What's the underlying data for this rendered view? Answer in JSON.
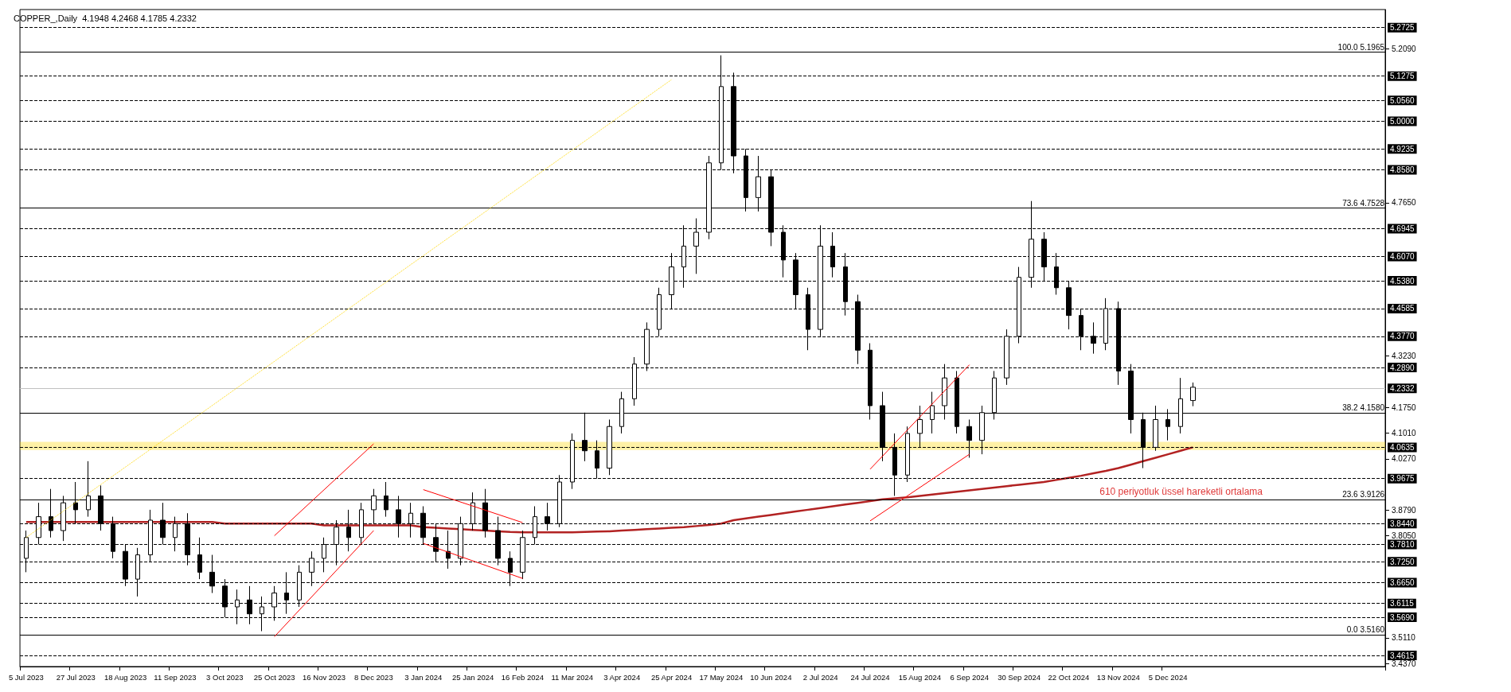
{
  "chart_data": {
    "type": "candlestick",
    "title": "COPPER_,Daily  4.1948 4.2468 4.1785 4.2332",
    "categories": [
      "5 Jul 2023",
      null,
      null,
      null,
      "27 Jul 2023",
      null,
      null,
      null,
      "18 Aug 2023",
      null,
      null,
      null,
      "11 Sep 2023",
      null,
      null,
      null,
      "3 Oct 2023",
      null,
      null,
      null,
      "25 Oct 2023",
      null,
      null,
      null,
      "16 Nov 2023",
      null,
      null,
      null,
      "8 Dec 2023",
      null,
      null,
      null,
      "3 Jan 2024",
      null,
      null,
      null,
      "25 Jan 2024",
      null,
      null,
      null,
      "16 Feb 2024",
      null,
      null,
      null,
      "11 Mar 2024",
      null,
      null,
      null,
      "3 Apr 2024",
      null,
      null,
      null,
      "25 Apr 2024",
      null,
      null,
      null,
      "17 May 2024",
      null,
      null,
      null,
      "10 Jun 2024",
      null,
      null,
      null,
      "2 Jul 2024",
      null,
      null,
      null,
      "24 Jul 2024",
      null,
      null,
      null,
      "15 Aug 2024",
      null,
      null,
      null,
      "6 Sep 2024",
      null,
      null,
      null,
      "30 Sep 2024",
      null,
      null,
      null,
      "22 Oct 2024",
      null,
      null,
      null,
      "13 Nov 2024",
      null,
      null,
      null,
      "5 Dec 2024",
      null,
      null,
      null,
      null,
      null,
      null,
      null,
      null,
      null,
      null,
      null,
      null,
      null,
      null,
      null,
      null,
      null
    ],
    "ohlc": [
      [
        3.74,
        3.82,
        3.7,
        3.8
      ],
      [
        3.8,
        3.9,
        3.78,
        3.86
      ],
      [
        3.86,
        3.94,
        3.8,
        3.82
      ],
      [
        3.82,
        3.92,
        3.79,
        3.9
      ],
      [
        3.9,
        3.96,
        3.84,
        3.88
      ],
      [
        3.88,
        4.02,
        3.86,
        3.92
      ],
      [
        3.92,
        3.95,
        3.82,
        3.84
      ],
      [
        3.84,
        3.86,
        3.74,
        3.76
      ],
      [
        3.76,
        3.78,
        3.66,
        3.68
      ],
      [
        3.68,
        3.77,
        3.63,
        3.75
      ],
      [
        3.75,
        3.88,
        3.73,
        3.85
      ],
      [
        3.85,
        3.9,
        3.78,
        3.8
      ],
      [
        3.8,
        3.86,
        3.76,
        3.84
      ],
      [
        3.84,
        3.87,
        3.72,
        3.75
      ],
      [
        3.75,
        3.8,
        3.68,
        3.7
      ],
      [
        3.7,
        3.75,
        3.64,
        3.66
      ],
      [
        3.66,
        3.68,
        3.57,
        3.6
      ],
      [
        3.6,
        3.65,
        3.55,
        3.62
      ],
      [
        3.62,
        3.66,
        3.55,
        3.58
      ],
      [
        3.58,
        3.63,
        3.53,
        3.6
      ],
      [
        3.6,
        3.66,
        3.56,
        3.64
      ],
      [
        3.64,
        3.7,
        3.58,
        3.62
      ],
      [
        3.62,
        3.72,
        3.6,
        3.7
      ],
      [
        3.7,
        3.76,
        3.66,
        3.74
      ],
      [
        3.74,
        3.8,
        3.7,
        3.78
      ],
      [
        3.78,
        3.85,
        3.72,
        3.83
      ],
      [
        3.83,
        3.88,
        3.76,
        3.8
      ],
      [
        3.8,
        3.9,
        3.78,
        3.88
      ],
      [
        3.88,
        3.94,
        3.84,
        3.92
      ],
      [
        3.92,
        3.96,
        3.86,
        3.88
      ],
      [
        3.88,
        3.92,
        3.8,
        3.84
      ],
      [
        3.84,
        3.9,
        3.8,
        3.87
      ],
      [
        3.87,
        3.89,
        3.78,
        3.8
      ],
      [
        3.8,
        3.84,
        3.73,
        3.76
      ],
      [
        3.76,
        3.82,
        3.71,
        3.74
      ],
      [
        3.74,
        3.86,
        3.72,
        3.84
      ],
      [
        3.84,
        3.93,
        3.82,
        3.9
      ],
      [
        3.9,
        3.94,
        3.8,
        3.82
      ],
      [
        3.82,
        3.86,
        3.72,
        3.74
      ],
      [
        3.74,
        3.76,
        3.66,
        3.7
      ],
      [
        3.7,
        3.82,
        3.68,
        3.8
      ],
      [
        3.8,
        3.89,
        3.78,
        3.86
      ],
      [
        3.86,
        3.9,
        3.82,
        3.84
      ],
      [
        3.84,
        3.98,
        3.83,
        3.96
      ],
      [
        3.96,
        4.1,
        3.94,
        4.08
      ],
      [
        4.08,
        4.16,
        4.02,
        4.05
      ],
      [
        4.05,
        4.08,
        3.97,
        4.0
      ],
      [
        4.0,
        4.14,
        3.98,
        4.12
      ],
      [
        4.12,
        4.22,
        4.1,
        4.2
      ],
      [
        4.2,
        4.32,
        4.18,
        4.3
      ],
      [
        4.3,
        4.42,
        4.28,
        4.4
      ],
      [
        4.4,
        4.52,
        4.38,
        4.5
      ],
      [
        4.5,
        4.62,
        4.46,
        4.58
      ],
      [
        4.58,
        4.7,
        4.52,
        4.64
      ],
      [
        4.64,
        4.72,
        4.56,
        4.68
      ],
      [
        4.68,
        4.9,
        4.66,
        4.88
      ],
      [
        4.88,
        5.19,
        4.86,
        5.1
      ],
      [
        5.1,
        5.14,
        4.85,
        4.9
      ],
      [
        4.9,
        4.92,
        4.74,
        4.78
      ],
      [
        4.78,
        4.9,
        4.74,
        4.84
      ],
      [
        4.84,
        4.86,
        4.64,
        4.68
      ],
      [
        4.68,
        4.7,
        4.55,
        4.6
      ],
      [
        4.6,
        4.62,
        4.46,
        4.5
      ],
      [
        4.5,
        4.52,
        4.34,
        4.4
      ],
      [
        4.4,
        4.7,
        4.38,
        4.64
      ],
      [
        4.64,
        4.68,
        4.55,
        4.58
      ],
      [
        4.58,
        4.62,
        4.44,
        4.48
      ],
      [
        4.48,
        4.5,
        4.3,
        4.34
      ],
      [
        4.34,
        4.36,
        4.14,
        4.18
      ],
      [
        4.18,
        4.22,
        4.02,
        4.06
      ],
      [
        4.06,
        4.1,
        3.92,
        3.98
      ],
      [
        3.98,
        4.12,
        3.96,
        4.1
      ],
      [
        4.1,
        4.18,
        4.06,
        4.14
      ],
      [
        4.14,
        4.22,
        4.1,
        4.18
      ],
      [
        4.18,
        4.3,
        4.14,
        4.26
      ],
      [
        4.26,
        4.28,
        4.1,
        4.12
      ],
      [
        4.12,
        4.14,
        4.03,
        4.08
      ],
      [
        4.08,
        4.18,
        4.04,
        4.16
      ],
      [
        4.16,
        4.28,
        4.14,
        4.26
      ],
      [
        4.26,
        4.4,
        4.24,
        4.38
      ],
      [
        4.38,
        4.58,
        4.36,
        4.55
      ],
      [
        4.55,
        4.77,
        4.52,
        4.66
      ],
      [
        4.66,
        4.68,
        4.54,
        4.58
      ],
      [
        4.58,
        4.62,
        4.5,
        4.52
      ],
      [
        4.52,
        4.54,
        4.4,
        4.44
      ],
      [
        4.44,
        4.46,
        4.34,
        4.38
      ],
      [
        4.38,
        4.42,
        4.33,
        4.36
      ],
      [
        4.36,
        4.49,
        4.34,
        4.46
      ],
      [
        4.46,
        4.48,
        4.24,
        4.28
      ],
      [
        4.28,
        4.3,
        4.1,
        4.14
      ],
      [
        4.14,
        4.16,
        4.0,
        4.06
      ],
      [
        4.06,
        4.18,
        4.05,
        4.14
      ],
      [
        4.14,
        4.17,
        4.08,
        4.12
      ],
      [
        4.12,
        4.26,
        4.1,
        4.2
      ],
      [
        4.1948,
        4.2468,
        4.1785,
        4.2332
      ],
      null,
      null,
      null,
      null,
      null,
      null,
      null,
      null,
      null,
      null,
      null,
      null,
      null,
      null,
      null
    ],
    "series": [
      {
        "type": "line",
        "color": "#b22222",
        "values": [
          3.845,
          3.845,
          3.845,
          3.845,
          3.845,
          3.845,
          3.845,
          3.845,
          3.845,
          3.845,
          3.845,
          3.845,
          3.845,
          3.845,
          3.845,
          3.845,
          3.84,
          3.84,
          3.84,
          3.84,
          3.84,
          3.84,
          3.84,
          3.84,
          3.835,
          3.835,
          3.835,
          3.835,
          3.835,
          3.835,
          3.835,
          3.835,
          3.83,
          3.828,
          3.826,
          3.824,
          3.822,
          3.82,
          3.818,
          3.816,
          3.815,
          3.815,
          3.815,
          3.815,
          3.815,
          3.816,
          3.817,
          3.818,
          3.82,
          3.822,
          3.824,
          3.826,
          3.828,
          3.83,
          3.833,
          3.836,
          3.84,
          3.85,
          3.855,
          3.86,
          3.865,
          3.87,
          3.875,
          3.88,
          3.885,
          3.89,
          3.895,
          3.9,
          3.905,
          3.91,
          3.913,
          3.916,
          3.92,
          3.924,
          3.928,
          3.932,
          3.936,
          3.94,
          3.944,
          3.948,
          3.952,
          3.956,
          3.96,
          3.966,
          3.972,
          3.978,
          3.985,
          3.992,
          4.0,
          4.01,
          4.02,
          4.03,
          4.04,
          4.05,
          4.06,
          null,
          null,
          null,
          null,
          null,
          null,
          null,
          null,
          null,
          null,
          null,
          null,
          null,
          null,
          null
        ]
      },
      {
        "type": "line",
        "color": "#ff0000",
        "x": [
          "25 Oct 2023",
          "8 Dec 2023"
        ],
        "values": [
          3.514,
          3.82
        ]
      },
      {
        "type": "line",
        "color": "#ff0000",
        "x": [
          "25 Oct 2023",
          "8 Dec 2023"
        ],
        "values": [
          3.805,
          4.07
        ]
      },
      {
        "type": "line",
        "color": "#ff0000",
        "x": [
          "3 Jan 2024",
          "16 Feb 2024"
        ],
        "values": [
          3.938,
          3.843
        ]
      },
      {
        "type": "line",
        "color": "#ff0000",
        "x": [
          "3 Jan 2024",
          "16 Feb 2024"
        ],
        "values": [
          3.783,
          3.682
        ]
      },
      {
        "type": "line",
        "color": "#ff0000",
        "x": [
          "24 Jul 2024",
          "6 Sep 2024"
        ],
        "values": [
          3.848,
          4.04
        ]
      },
      {
        "type": "line",
        "color": "#ff0000",
        "x": [
          "24 Jul 2024",
          "6 Sep 2024"
        ],
        "values": [
          3.997,
          4.298
        ]
      },
      {
        "type": "line",
        "color": "#ffd700",
        "line_style": "dotted",
        "x": [
          "5 Jul 2023",
          "25 Apr 2024"
        ],
        "values": [
          3.8,
          5.12
        ]
      }
    ],
    "ylim": [
      3.428,
      5.322
    ],
    "yticks": [
      {
        "value": 5.209,
        "label": "5.2090"
      },
      {
        "value": 4.765,
        "label": "4.7650"
      },
      {
        "value": 4.323,
        "label": "4.3230"
      },
      {
        "value": 4.175,
        "label": "4.1750"
      },
      {
        "value": 4.101,
        "label": "4.1010"
      },
      {
        "value": 4.027,
        "label": "4.0270"
      },
      {
        "value": 3.879,
        "label": "3.8790"
      },
      {
        "value": 3.805,
        "label": "3.8050"
      },
      {
        "value": 3.511,
        "label": "3.5110"
      },
      {
        "value": 3.437,
        "label": "3.4370"
      }
    ],
    "ref_lines": [
      {
        "axis": "y",
        "value": 5.2725,
        "label": "5.2725",
        "color": "#000000",
        "line_style": "dashed"
      },
      {
        "axis": "y",
        "value": 5.1965,
        "label": "100.0 5.1965",
        "color": "#000000",
        "line_style": "solid"
      },
      {
        "axis": "y",
        "value": 5.1275,
        "label": "5.1275",
        "color": "#000000",
        "line_style": "dashed"
      },
      {
        "axis": "y",
        "value": 5.056,
        "label": "5.0560",
        "color": "#000000",
        "line_style": "dashed"
      },
      {
        "axis": "y",
        "value": 5.0,
        "label": "5.0000",
        "color": "#000000",
        "line_style": "dashed"
      },
      {
        "axis": "y",
        "value": 4.9235,
        "label": "4.9235",
        "color": "#000000",
        "line_style": "dashed"
      },
      {
        "axis": "y",
        "value": 4.858,
        "label": "4.8580",
        "color": "#000000",
        "line_style": "dashed"
      },
      {
        "axis": "y",
        "value": 4.7528,
        "label": "73.6 4.7528",
        "color": "#000000",
        "line_style": "solid"
      },
      {
        "axis": "y",
        "value": 4.6945,
        "label": "4.6945",
        "color": "#000000",
        "line_style": "dashed"
      },
      {
        "axis": "y",
        "value": 4.607,
        "label": "4.6070",
        "color": "#000000",
        "line_style": "dashed"
      },
      {
        "axis": "y",
        "value": 4.538,
        "label": "4.5380",
        "color": "#000000",
        "line_style": "dashed"
      },
      {
        "axis": "y",
        "value": 4.4585,
        "label": "4.4585",
        "color": "#000000",
        "line_style": "dashed"
      },
      {
        "axis": "y",
        "value": 4.377,
        "label": "4.3770",
        "color": "#000000",
        "line_style": "dashed"
      },
      {
        "axis": "y",
        "value": 4.289,
        "label": "4.2890",
        "color": "#000000",
        "line_style": "dashed"
      },
      {
        "axis": "y",
        "value": 4.2332,
        "label": "4.2332",
        "color": "#c0c0c0",
        "line_style": "solid"
      },
      {
        "axis": "y",
        "value": 4.158,
        "label": "38.2 4.1580",
        "color": "#000000",
        "line_style": "solid"
      },
      {
        "axis": "y",
        "value": 4.0635,
        "label": "4.0635",
        "color": "#000000",
        "line_style": "dashed"
      },
      {
        "axis": "y",
        "value": 3.9675,
        "label": "3.9675",
        "color": "#000000",
        "line_style": "dashed"
      },
      {
        "axis": "y",
        "value": 3.9126,
        "label": "23.6 3.9126",
        "color": "#000000",
        "line_style": "solid"
      },
      {
        "axis": "y",
        "value": 3.844,
        "label": "3.8440",
        "color": "#000000",
        "line_style": "dashed"
      },
      {
        "axis": "y",
        "value": 3.781,
        "label": "3.7810",
        "color": "#000000",
        "line_style": "dashed"
      },
      {
        "axis": "y",
        "value": 3.725,
        "label": "3.7250",
        "color": "#000000",
        "line_style": "dashed"
      },
      {
        "axis": "y",
        "value": 3.665,
        "label": "3.6650",
        "color": "#000000",
        "line_style": "dashed"
      },
      {
        "axis": "y",
        "value": 3.6115,
        "label": "3.6115",
        "color": "#000000",
        "line_style": "dashed"
      },
      {
        "axis": "y",
        "value": 3.569,
        "label": "3.5690",
        "color": "#000000",
        "line_style": "dashed"
      },
      {
        "axis": "y",
        "value": 3.516,
        "label": "0.0 3.5160",
        "color": "#000000",
        "line_style": "solid"
      },
      {
        "axis": "y",
        "value": 3.4615,
        "label": "3.4615",
        "color": "#000000",
        "line_style": "dashed"
      }
    ],
    "bands": [
      {
        "axis": "y",
        "from": 4.052,
        "to": 4.076,
        "color": "#ffd700"
      }
    ],
    "annotations": [
      "610 periyotluk üssel hareketli ortalama"
    ],
    "grid": false
  }
}
